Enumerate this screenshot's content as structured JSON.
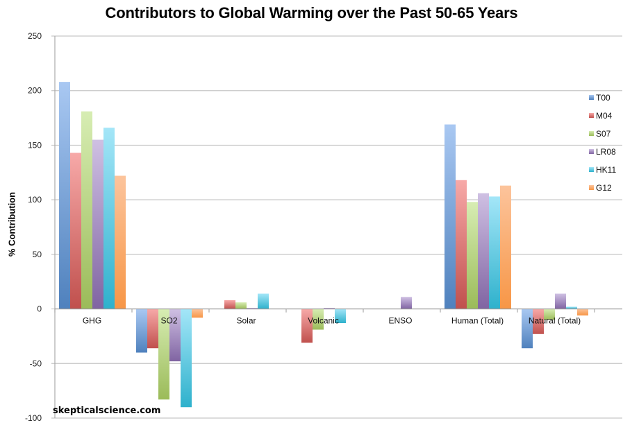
{
  "chart_data": {
    "type": "bar",
    "title": "Contributors to Global Warming over the Past 50-65 Years",
    "xlabel": "",
    "ylabel": "% Contribution",
    "ylim": [
      -100,
      250
    ],
    "yticks": [
      250,
      200,
      150,
      100,
      50,
      0,
      -50,
      -100
    ],
    "grid": true,
    "legend_position": "right",
    "categories": [
      "GHG",
      "SO2",
      "Solar",
      "Volcanic",
      "ENSO",
      "Human (Total)",
      "Natural (Total)"
    ],
    "series": [
      {
        "name": "T00",
        "color": "#4f81bd",
        "light": "#a9c8f2",
        "values": [
          208,
          -40,
          0,
          0,
          0,
          169,
          -36
        ]
      },
      {
        "name": "M04",
        "color": "#c0504d",
        "light": "#f7a9a8",
        "values": [
          143,
          -36,
          8,
          -31,
          0,
          118,
          -23
        ]
      },
      {
        "name": "S07",
        "color": "#9bbb59",
        "light": "#d7edb3",
        "values": [
          181,
          -83,
          6,
          -19,
          0,
          98,
          -10
        ]
      },
      {
        "name": "LR08",
        "color": "#8064a2",
        "light": "#cfc0e3",
        "values": [
          155,
          -48,
          1,
          1,
          11,
          106,
          14
        ]
      },
      {
        "name": "HK11",
        "color": "#2eb1cc",
        "light": "#a4e6f8",
        "values": [
          166,
          -90,
          14,
          -13,
          0,
          103,
          2
        ]
      },
      {
        "name": "G12",
        "color": "#f79646",
        "light": "#fcc49c",
        "values": [
          122,
          -8,
          0,
          0,
          0,
          113,
          -6
        ]
      }
    ]
  },
  "watermark": "skepticalscience.com"
}
